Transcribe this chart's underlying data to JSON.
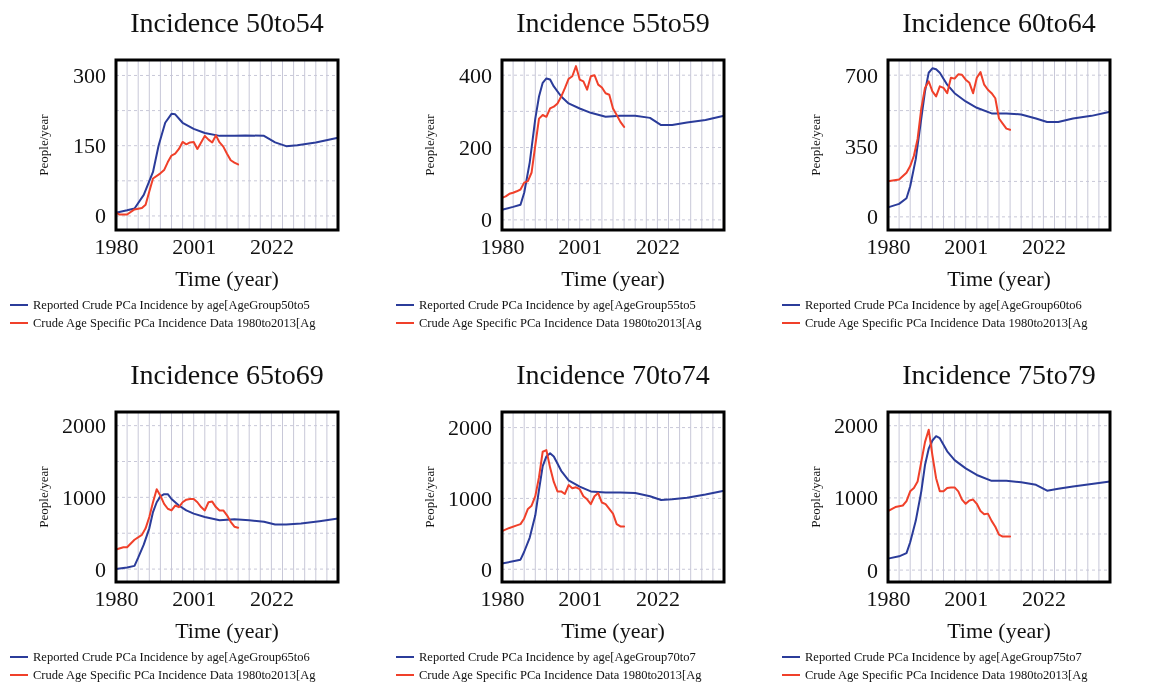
{
  "chart_data": [
    {
      "type": "line",
      "title": "Incidence 50to54",
      "xlabel": "Time (year)",
      "ylabel": "People/year",
      "xlim": [
        1980,
        2040
      ],
      "ylim": [
        -30,
        333
      ],
      "yticks": [
        0,
        {
          "value": 75,
          "label": null
        },
        150,
        {
          "value": 225,
          "label": null
        },
        300
      ],
      "xticks": [
        1980,
        {
          "value": 1983,
          "label": null
        },
        {
          "value": 1986,
          "label": null
        },
        {
          "value": 1989,
          "label": null
        },
        {
          "value": 1992,
          "label": null
        },
        {
          "value": 1995,
          "label": null
        },
        {
          "value": 1998,
          "label": null
        },
        2001,
        {
          "value": 2004,
          "label": null
        },
        {
          "value": 2007,
          "label": null
        },
        {
          "value": 2010,
          "label": null
        },
        {
          "value": 2013,
          "label": null
        },
        {
          "value": 2016,
          "label": null
        },
        {
          "value": 2019,
          "label": null
        },
        2022,
        {
          "value": 2025,
          "label": null
        },
        {
          "value": 2028,
          "label": null
        },
        {
          "value": 2031,
          "label": null
        },
        {
          "value": 2034,
          "label": null
        },
        {
          "value": 2037,
          "label": null
        },
        {
          "value": 2040,
          "label": null
        }
      ],
      "grid": true,
      "legend": "bottom",
      "series": [
        {
          "name": "Reported Crude PCa Incidence by age[AgeGroup50to5",
          "color": "#2b3c9a",
          "x": [
            1980,
            1983,
            1985,
            1987.5,
            1990,
            1991.5,
            1993.3,
            1995,
            1996,
            1998,
            2001,
            2004,
            2008,
            2012,
            2015,
            2020,
            2023,
            2026,
            2029,
            2034,
            2040
          ],
          "values": [
            7,
            12,
            16,
            45,
            94,
            150,
            199,
            218,
            217,
            199,
            186,
            177,
            171,
            171,
            172,
            171,
            157,
            149,
            151,
            157,
            167
          ]
        },
        {
          "name": "Crude Age Specific PCa Incidence Data 1980to2013[Ag",
          "color": "#f0402a",
          "x": [
            1980,
            1981,
            1983,
            1985,
            1987,
            1988,
            1989,
            1990,
            1992,
            1993,
            1994,
            1995,
            1996,
            1997,
            1998,
            1999,
            2000,
            2001,
            2002,
            2003,
            2004,
            2005,
            2006,
            2007,
            2008,
            2009,
            2010,
            2011,
            2012,
            2013
          ],
          "values": [
            7,
            3,
            3,
            14,
            17,
            24,
            52,
            80,
            91,
            98,
            115,
            129,
            133,
            143,
            158,
            153,
            157,
            158,
            143,
            157,
            171,
            163,
            157,
            172,
            157,
            148,
            133,
            119,
            114,
            110
          ]
        }
      ]
    },
    {
      "type": "line",
      "title": "Incidence 55to59",
      "xlabel": "Time (year)",
      "ylabel": "People/year",
      "xlim": [
        1980,
        2040
      ],
      "ylim": [
        -28,
        442
      ],
      "yticks": [
        0,
        {
          "value": 100,
          "label": null
        },
        200,
        {
          "value": 300,
          "label": null
        },
        400
      ],
      "xticks": [
        1980,
        {
          "value": 1983,
          "label": null
        },
        {
          "value": 1986,
          "label": null
        },
        {
          "value": 1989,
          "label": null
        },
        {
          "value": 1992,
          "label": null
        },
        {
          "value": 1995,
          "label": null
        },
        {
          "value": 1998,
          "label": null
        },
        2001,
        {
          "value": 2004,
          "label": null
        },
        {
          "value": 2007,
          "label": null
        },
        {
          "value": 2010,
          "label": null
        },
        {
          "value": 2013,
          "label": null
        },
        {
          "value": 2016,
          "label": null
        },
        {
          "value": 2019,
          "label": null
        },
        2022,
        {
          "value": 2025,
          "label": null
        },
        {
          "value": 2028,
          "label": null
        },
        {
          "value": 2031,
          "label": null
        },
        {
          "value": 2034,
          "label": null
        },
        {
          "value": 2037,
          "label": null
        },
        {
          "value": 2040,
          "label": null
        }
      ],
      "grid": true,
      "legend": "bottom",
      "series": [
        {
          "name": "Reported Crude PCa Incidence by age[AgeGroup55to5",
          "color": "#2b3c9a",
          "x": [
            1980,
            1983,
            1985,
            1986,
            1987.5,
            1989,
            1990,
            1991,
            1992,
            1993,
            1994,
            1996,
            1998,
            2001,
            2004,
            2008,
            2012,
            2016,
            2020,
            2023,
            2026,
            2030,
            2035,
            2040
          ],
          "values": [
            28,
            36,
            42,
            75,
            159,
            280,
            341,
            379,
            391,
            388,
            369,
            341,
            322,
            308,
            296,
            285,
            288,
            288,
            282,
            262,
            262,
            269,
            276,
            288
          ]
        },
        {
          "name": "Crude Age Specific PCa Incidence Data 1980to2013[Ag",
          "color": "#f0402a",
          "x": [
            1980,
            1981,
            1982,
            1983,
            1984,
            1985,
            1986,
            1987,
            1988,
            1989,
            1990,
            1991,
            1992,
            1993,
            1994,
            1995,
            1996,
            1997,
            1998,
            1999,
            2000,
            2001,
            2002,
            2003,
            2004,
            2005,
            2006,
            2007,
            2008,
            2009,
            2010,
            2011,
            2012,
            2013
          ],
          "values": [
            61,
            65,
            72,
            75,
            79,
            84,
            103,
            107,
            131,
            206,
            280,
            290,
            285,
            308,
            313,
            322,
            341,
            364,
            390,
            397,
            425,
            388,
            383,
            360,
            397,
            400,
            374,
            366,
            350,
            346,
            308,
            290,
            271,
            257
          ]
        }
      ]
    },
    {
      "type": "line",
      "title": "Incidence 60to64",
      "xlabel": "Time (year)",
      "ylabel": "People/year",
      "xlim": [
        1980,
        2040
      ],
      "ylim": [
        -65,
        775
      ],
      "yticks": [
        0,
        {
          "value": 175,
          "label": null
        },
        350,
        {
          "value": 525,
          "label": null
        },
        700
      ],
      "xticks": [
        1980,
        {
          "value": 1983,
          "label": null
        },
        {
          "value": 1986,
          "label": null
        },
        {
          "value": 1989,
          "label": null
        },
        {
          "value": 1992,
          "label": null
        },
        {
          "value": 1995,
          "label": null
        },
        {
          "value": 1998,
          "label": null
        },
        2001,
        {
          "value": 2004,
          "label": null
        },
        {
          "value": 2007,
          "label": null
        },
        {
          "value": 2010,
          "label": null
        },
        {
          "value": 2013,
          "label": null
        },
        {
          "value": 2016,
          "label": null
        },
        {
          "value": 2019,
          "label": null
        },
        2022,
        {
          "value": 2025,
          "label": null
        },
        {
          "value": 2028,
          "label": null
        },
        {
          "value": 2031,
          "label": null
        },
        {
          "value": 2034,
          "label": null
        },
        {
          "value": 2037,
          "label": null
        },
        {
          "value": 2040,
          "label": null
        }
      ],
      "grid": true,
      "legend": "bottom",
      "series": [
        {
          "name": "Reported Crude PCa Incidence by age[AgeGroup60to6",
          "color": "#2b3c9a",
          "x": [
            1980,
            1983,
            1985,
            1986,
            1987.5,
            1989,
            1990,
            1991,
            1992,
            1993,
            1994,
            1996,
            1998,
            2001,
            2004,
            2008,
            2012,
            2016,
            2020,
            2023,
            2026,
            2030,
            2035,
            2040
          ],
          "values": [
            47,
            64,
            92,
            151,
            285,
            486,
            620,
            712,
            734,
            729,
            712,
            653,
            611,
            570,
            539,
            511,
            511,
            506,
            486,
            469,
            469,
            486,
            499,
            519
          ]
        },
        {
          "name": "Crude Age Specific PCa Incidence Data 1980to2013[Ag",
          "color": "#f0402a",
          "x": [
            1980,
            1983,
            1985,
            1986,
            1987,
            1988,
            1989,
            1990,
            1991,
            1992,
            1993,
            1994,
            1995,
            1996,
            1997,
            1998,
            1999,
            2000,
            2001,
            2002,
            2003,
            2004,
            2005,
            2006,
            2007,
            2008,
            2009,
            2010,
            2011,
            2012,
            2013
          ],
          "values": [
            176,
            184,
            218,
            251,
            302,
            385,
            536,
            637,
            670,
            620,
            595,
            645,
            637,
            611,
            687,
            683,
            704,
            702,
            678,
            662,
            611,
            687,
            715,
            653,
            628,
            611,
            586,
            486,
            461,
            436,
            430
          ]
        }
      ]
    },
    {
      "type": "line",
      "title": "Incidence 65to69",
      "xlabel": "Time (year)",
      "ylabel": "People/year",
      "xlim": [
        1980,
        2040
      ],
      "ylim": [
        -180,
        2190
      ],
      "yticks": [
        0,
        {
          "value": 500,
          "label": null
        },
        1000,
        {
          "value": 1500,
          "label": null
        },
        2000
      ],
      "xticks": [
        1980,
        {
          "value": 1983,
          "label": null
        },
        {
          "value": 1986,
          "label": null
        },
        {
          "value": 1989,
          "label": null
        },
        {
          "value": 1992,
          "label": null
        },
        {
          "value": 1995,
          "label": null
        },
        {
          "value": 1998,
          "label": null
        },
        2001,
        {
          "value": 2004,
          "label": null
        },
        {
          "value": 2007,
          "label": null
        },
        {
          "value": 2010,
          "label": null
        },
        {
          "value": 2013,
          "label": null
        },
        {
          "value": 2016,
          "label": null
        },
        {
          "value": 2019,
          "label": null
        },
        2022,
        {
          "value": 2025,
          "label": null
        },
        {
          "value": 2028,
          "label": null
        },
        {
          "value": 2031,
          "label": null
        },
        {
          "value": 2034,
          "label": null
        },
        {
          "value": 2037,
          "label": null
        },
        {
          "value": 2040,
          "label": null
        }
      ],
      "grid": true,
      "legend": "bottom",
      "series": [
        {
          "name": "Reported Crude PCa Incidence by age[AgeGroup65to6",
          "color": "#2b3c9a",
          "x": [
            1980,
            1983,
            1985,
            1986,
            1987.5,
            1989,
            1990,
            1991,
            1992,
            1993,
            1994,
            1995,
            1997,
            1999,
            2001,
            2004,
            2008,
            2012,
            2016,
            2020,
            2023,
            2026,
            2030,
            2035,
            2040
          ],
          "values": [
            0,
            23,
            45,
            159,
            341,
            568,
            795,
            932,
            1014,
            1045,
            1045,
            977,
            886,
            818,
            773,
            727,
            682,
            695,
            682,
            659,
            623,
            623,
            636,
            668,
            705
          ]
        },
        {
          "name": "Crude Age Specific PCa Incidence Data 1980to2013[Ag",
          "color": "#f0402a",
          "x": [
            1980,
            1982,
            1983,
            1985,
            1987,
            1988,
            1989,
            1990,
            1991,
            1992,
            1993,
            1994,
            1995,
            1996,
            1997,
            1998,
            1999,
            2000,
            2001,
            2002,
            2003,
            2004,
            2005,
            2006,
            2007,
            2008,
            2009,
            2010,
            2011,
            2012,
            2013
          ],
          "values": [
            273,
            305,
            305,
            409,
            477,
            568,
            727,
            932,
            1114,
            1023,
            909,
            841,
            818,
            886,
            864,
            932,
            968,
            977,
            977,
            932,
            864,
            818,
            932,
            941,
            864,
            818,
            818,
            750,
            659,
            591,
            577
          ]
        }
      ]
    },
    {
      "type": "line",
      "title": "Incidence 70to74",
      "xlabel": "Time (year)",
      "ylabel": "People/year",
      "xlim": [
        1980,
        2040
      ],
      "ylim": [
        -180,
        2220
      ],
      "yticks": [
        0,
        {
          "value": 500,
          "label": null
        },
        1000,
        {
          "value": 1500,
          "label": null
        },
        2000
      ],
      "xticks": [
        1980,
        {
          "value": 1983,
          "label": null
        },
        {
          "value": 1986,
          "label": null
        },
        {
          "value": 1989,
          "label": null
        },
        {
          "value": 1992,
          "label": null
        },
        {
          "value": 1995,
          "label": null
        },
        {
          "value": 1998,
          "label": null
        },
        2001,
        {
          "value": 2004,
          "label": null
        },
        {
          "value": 2007,
          "label": null
        },
        {
          "value": 2010,
          "label": null
        },
        {
          "value": 2013,
          "label": null
        },
        {
          "value": 2016,
          "label": null
        },
        {
          "value": 2019,
          "label": null
        },
        2022,
        {
          "value": 2025,
          "label": null
        },
        {
          "value": 2028,
          "label": null
        },
        {
          "value": 2031,
          "label": null
        },
        {
          "value": 2034,
          "label": null
        },
        {
          "value": 2037,
          "label": null
        },
        {
          "value": 2040,
          "label": null
        }
      ],
      "grid": true,
      "legend": "bottom",
      "series": [
        {
          "name": "Reported Crude PCa Incidence by age[AgeGroup70to7",
          "color": "#2b3c9a",
          "x": [
            1980,
            1983,
            1985,
            1986,
            1987.5,
            1989,
            1990,
            1991,
            1992,
            1993,
            1994,
            1996,
            1998,
            2001,
            2004,
            2008,
            2012,
            2016,
            2020,
            2023,
            2026,
            2030,
            2035,
            2040
          ],
          "values": [
            81,
            112,
            135,
            247,
            448,
            762,
            1121,
            1457,
            1592,
            1637,
            1592,
            1390,
            1256,
            1166,
            1099,
            1085,
            1085,
            1076,
            1031,
            978,
            987,
            1009,
            1054,
            1108
          ]
        },
        {
          "name": "Crude Age Specific PCa Incidence Data 1980to2013[Ag",
          "color": "#f0402a",
          "x": [
            1980,
            1982,
            1984,
            1985,
            1986,
            1987,
            1988,
            1989,
            1990,
            1991,
            1992,
            1993,
            1994,
            1995,
            1996,
            1997,
            1998,
            1999,
            2000,
            2001,
            2002,
            2003,
            2004,
            2005,
            2006,
            2007,
            2008,
            2009,
            2010,
            2011,
            2012,
            2013
          ],
          "values": [
            538,
            583,
            619,
            637,
            717,
            852,
            897,
            1031,
            1300,
            1659,
            1682,
            1435,
            1233,
            1099,
            1099,
            1063,
            1188,
            1143,
            1157,
            1130,
            1031,
            987,
            919,
            1031,
            1076,
            942,
            919,
            852,
            785,
            637,
            605,
            605
          ]
        }
      ]
    },
    {
      "type": "line",
      "title": "Incidence 75to79",
      "xlabel": "Time (year)",
      "ylabel": "People/year",
      "xlim": [
        1980,
        2040
      ],
      "ylim": [
        -165,
        2190
      ],
      "yticks": [
        0,
        {
          "value": 500,
          "label": null
        },
        1000,
        {
          "value": 1500,
          "label": null
        },
        2000
      ],
      "xticks": [
        1980,
        {
          "value": 1983,
          "label": null
        },
        {
          "value": 1986,
          "label": null
        },
        {
          "value": 1989,
          "label": null
        },
        {
          "value": 1992,
          "label": null
        },
        {
          "value": 1995,
          "label": null
        },
        {
          "value": 1998,
          "label": null
        },
        2001,
        {
          "value": 2004,
          "label": null
        },
        {
          "value": 2007,
          "label": null
        },
        {
          "value": 2010,
          "label": null
        },
        {
          "value": 2013,
          "label": null
        },
        {
          "value": 2016,
          "label": null
        },
        {
          "value": 2019,
          "label": null
        },
        2022,
        {
          "value": 2025,
          "label": null
        },
        {
          "value": 2028,
          "label": null
        },
        {
          "value": 2031,
          "label": null
        },
        {
          "value": 2034,
          "label": null
        },
        {
          "value": 2037,
          "label": null
        },
        {
          "value": 2040,
          "label": null
        }
      ],
      "grid": true,
      "legend": "bottom",
      "series": [
        {
          "name": "Reported Crude PCa Incidence by age[AgeGroup75to7",
          "color": "#2b3c9a",
          "x": [
            1980,
            1983,
            1985,
            1986,
            1987.5,
            1989,
            1990,
            1991,
            1992,
            1993,
            1994,
            1996,
            1998,
            2001,
            2004,
            2008,
            2012,
            2016,
            2020,
            2023,
            2026,
            2030,
            2035,
            2040
          ],
          "values": [
            159,
            191,
            236,
            386,
            682,
            1091,
            1455,
            1682,
            1795,
            1855,
            1827,
            1645,
            1523,
            1409,
            1318,
            1236,
            1236,
            1218,
            1182,
            1100,
            1127,
            1159,
            1191,
            1227
          ]
        },
        {
          "name": "Crude Age Specific PCa Incidence Data 1980to2013[Ag",
          "color": "#f0402a",
          "x": [
            1980,
            1982,
            1984,
            1985,
            1986,
            1987,
            1988,
            1989,
            1990,
            1991,
            1992,
            1993,
            1994,
            1995,
            1996,
            1997,
            1998,
            1999,
            2000,
            2001,
            2002,
            2003,
            2004,
            2005,
            2006,
            2007,
            2008,
            2009,
            2010,
            2011,
            2012,
            2013
          ],
          "values": [
            818,
            873,
            895,
            955,
            1091,
            1136,
            1227,
            1500,
            1773,
            1945,
            1591,
            1273,
            1091,
            1091,
            1136,
            1145,
            1145,
            1091,
            977,
            918,
            964,
            977,
            918,
            818,
            773,
            782,
            682,
            600,
            491,
            464,
            464,
            464
          ]
        }
      ]
    }
  ]
}
